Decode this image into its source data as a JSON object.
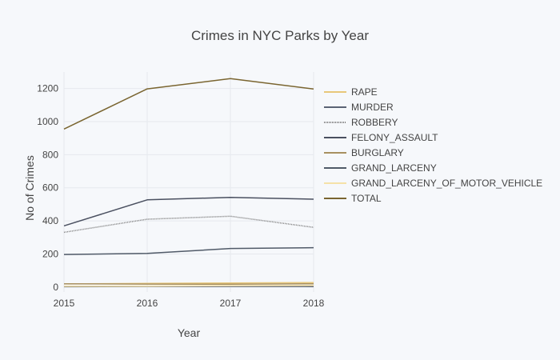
{
  "chart_data": {
    "type": "line",
    "title": "Crimes in NYC Parks by Year",
    "xlabel": "Year",
    "ylabel": "No of Crimes",
    "x": [
      2015,
      2016,
      2017,
      2018
    ],
    "xlim": [
      2015,
      2018
    ],
    "ylim": [
      -30,
      1300
    ],
    "yticks": [
      0,
      200,
      400,
      600,
      800,
      1000,
      1200
    ],
    "grid": true,
    "legend_position": "right",
    "series": [
      {
        "name": "RAPE",
        "color": "#e8c77a",
        "values": [
          19,
          22,
          24,
          27
        ]
      },
      {
        "name": "MURDER",
        "color": "#5a6374",
        "values": [
          2,
          4,
          4,
          3
        ]
      },
      {
        "name": "ROBBERY",
        "color": "#7c7c7c",
        "values": [
          331,
          410,
          428,
          361
        ],
        "dash": "1,1"
      },
      {
        "name": "FELONY_ASSAULT",
        "color": "#4a5060",
        "values": [
          370,
          527,
          542,
          531
        ]
      },
      {
        "name": "BURGLARY",
        "color": "#a89060",
        "values": [
          20,
          18,
          17,
          20
        ]
      },
      {
        "name": "GRAND_LARCENY",
        "color": "#505a68",
        "values": [
          197,
          203,
          233,
          238
        ]
      },
      {
        "name": "GRAND_LARCENY_OF_MOTOR_VEHICLE",
        "color": "#f5e1a8",
        "values": [
          5,
          6,
          8,
          9
        ]
      },
      {
        "name": "TOTAL",
        "color": "#7a6530",
        "values": [
          955,
          1198,
          1260,
          1197
        ]
      }
    ]
  }
}
